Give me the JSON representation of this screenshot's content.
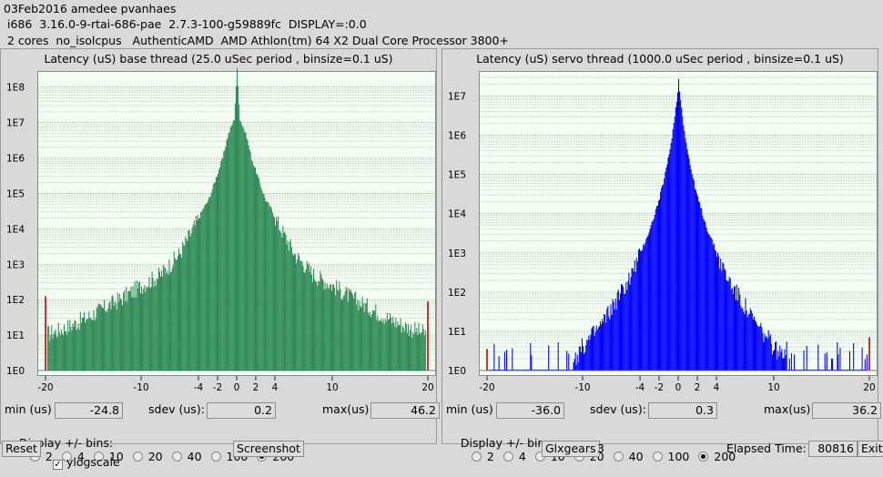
{
  "header": {
    "line1": "03Feb2016 amedee pvanhaes",
    "line2": " i686  3.16.0-9-rtai-686-pae  2.7.3-100-g59889fc  DISPLAY=:0.0",
    "line3": " 2 cores  no_isolcpus   AuthenticAMD  AMD Athlon(tm) 64 X2 Dual Core Processor 3800+"
  },
  "colors": {
    "base_bars": "#2e8b57",
    "servo_bars": "#0000ff",
    "edge_marks": "#cc3333",
    "plot_bg": "#f2fff2"
  },
  "base": {
    "title": "Latency (uS) base thread (25.0 uSec period , binsize=0.1 uS)",
    "min_label": "min (us)",
    "min_value": "-24.8",
    "sdev_label": "sdev (us):",
    "sdev_value": "0.2",
    "max_label": "max(us)",
    "max_value": "46.2",
    "bins_label": "Display +/- bins:",
    "bins_options": [
      "2",
      "4",
      "10",
      "20",
      "40",
      "100",
      "200"
    ],
    "bins_selected": "200"
  },
  "servo": {
    "title": "Latency (uS) servo thread (1000.0 uSec period , binsize=0.1 uS)",
    "min_label": "min (us)",
    "min_value": "-36.0",
    "sdev_label": "sdev (us):",
    "sdev_value": "0.3",
    "max_label": "max(us)",
    "max_value": "36.2",
    "bins_label": "Display +/- bins:",
    "bins_options": [
      "2",
      "4",
      "10",
      "20",
      "40",
      "100",
      "200"
    ],
    "bins_selected": "200"
  },
  "footer": {
    "reset_label": "Reset",
    "ylogscale_label": "ylogscale",
    "ylogscale_checked": true,
    "screenshot_label": "Screenshot",
    "glxgears_label": "Glxgears",
    "glxgears_count": "3",
    "elapsed_label": "Elapsed Time:",
    "elapsed_value": "80816",
    "exit_label": "Exit"
  },
  "chart_data": [
    {
      "type": "bar",
      "title": "Latency (uS) base thread (25.0 uSec period , binsize=0.1 uS)",
      "xlim": [
        -20,
        20
      ],
      "ylog": true,
      "ylim_log10": [
        -0.05,
        8.3
      ],
      "x_ticks": [
        -20,
        -10,
        -4,
        -2,
        0,
        2,
        4,
        10,
        20
      ],
      "y_ticks": [
        "1E0",
        "1E1",
        "1E2",
        "1E3",
        "1E4",
        "1E5",
        "1E6",
        "1E7",
        "1E8"
      ],
      "grid": true,
      "edge_log10": {
        "left": 2.1,
        "right": 1.95
      },
      "profile_log10": [
        {
          "x": 0,
          "y": 8.5
        },
        {
          "x": 0.3,
          "y": 7.1
        },
        {
          "x": 0.6,
          "y": 6.9
        },
        {
          "x": 1.0,
          "y": 6.6
        },
        {
          "x": 1.5,
          "y": 6.0
        },
        {
          "x": 2.0,
          "y": 5.6
        },
        {
          "x": 2.5,
          "y": 5.2
        },
        {
          "x": 3.0,
          "y": 4.8
        },
        {
          "x": 3.5,
          "y": 4.6
        },
        {
          "x": 4.0,
          "y": 4.3
        },
        {
          "x": 5.0,
          "y": 3.8
        },
        {
          "x": 6.0,
          "y": 3.3
        },
        {
          "x": 7.0,
          "y": 3.0
        },
        {
          "x": 8.0,
          "y": 2.7
        },
        {
          "x": 10.0,
          "y": 2.4
        },
        {
          "x": 12.0,
          "y": 2.05
        },
        {
          "x": 14.0,
          "y": 1.75
        },
        {
          "x": 16.0,
          "y": 1.45
        },
        {
          "x": 18.0,
          "y": 1.2
        },
        {
          "x": 19.6,
          "y": 1.05
        }
      ]
    },
    {
      "type": "bar",
      "title": "Latency (uS) servo thread (1000.0 uSec period , binsize=0.1 uS)",
      "xlim": [
        -20,
        20
      ],
      "ylog": true,
      "ylim_log10": [
        -0.05,
        7.5
      ],
      "x_ticks": [
        -20,
        -10,
        -4,
        -2,
        0,
        2,
        4,
        10,
        20
      ],
      "y_ticks": [
        "1E0",
        "1E1",
        "1E2",
        "1E3",
        "1E4",
        "1E5",
        "1E6",
        "1E7"
      ],
      "grid": true,
      "edge_log10": {
        "left": 0.55,
        "right": 0.85
      },
      "profile_log10": [
        {
          "x": 0,
          "y": 7.4
        },
        {
          "x": 0.2,
          "y": 6.9
        },
        {
          "x": 0.5,
          "y": 6.3
        },
        {
          "x": 1.0,
          "y": 5.5
        },
        {
          "x": 1.5,
          "y": 4.9
        },
        {
          "x": 2.0,
          "y": 4.4
        },
        {
          "x": 2.5,
          "y": 4.0
        },
        {
          "x": 3.0,
          "y": 3.6
        },
        {
          "x": 3.5,
          "y": 3.3
        },
        {
          "x": 4.0,
          "y": 3.0
        },
        {
          "x": 5.0,
          "y": 2.4
        },
        {
          "x": 6.0,
          "y": 2.0
        },
        {
          "x": 7.0,
          "y": 1.6
        },
        {
          "x": 8.0,
          "y": 1.2
        },
        {
          "x": 9.0,
          "y": 0.9
        },
        {
          "x": 10.0,
          "y": 0.6
        },
        {
          "x": 11.0,
          "y": 0.3
        },
        {
          "x": 12.0,
          "y": 0.0
        }
      ]
    }
  ]
}
